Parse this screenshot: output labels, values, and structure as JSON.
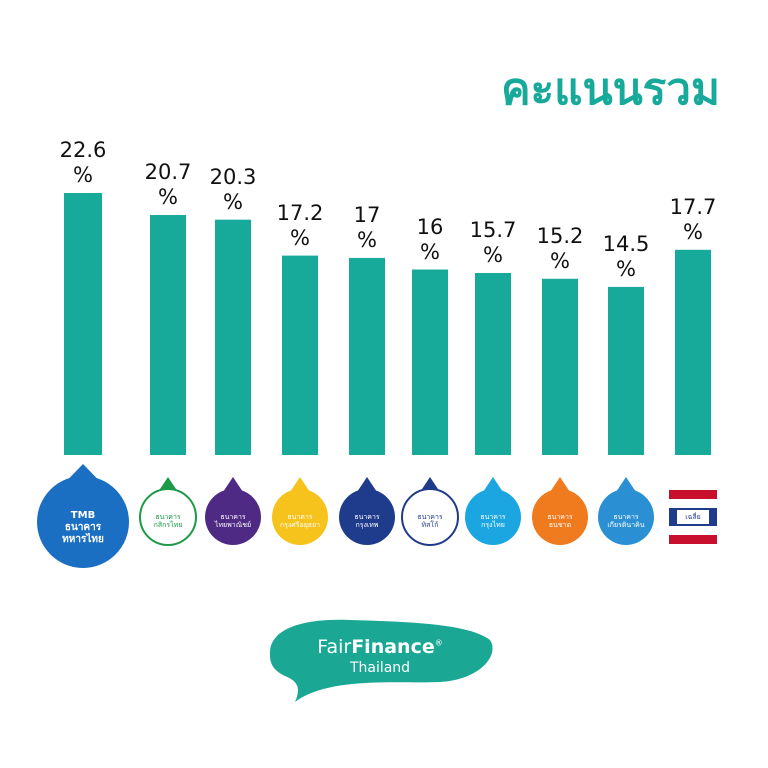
{
  "chart_data": {
    "type": "bar",
    "title": "คะแนนรวม",
    "categories": [
      "TMB ธนาคาร ทหารไทย",
      "ธนาคาร กสิกรไทย",
      "ธนาคาร ไทยพาณิชย์",
      "ธนาคาร กรุงศรีอยุธยา",
      "ธนาคาร กรุงเทพ",
      "ธนาคาร ทิสโก้",
      "ธนาคาร กรุงไทย",
      "ธนาคาร ธนชาต",
      "ธนาคาร เกียรตินาคิน",
      "เฉลี่ย"
    ],
    "values": [
      22.6,
      20.7,
      20.3,
      17.2,
      17,
      16,
      15.7,
      15.2,
      14.5,
      17.7
    ],
    "value_labels": [
      "22.6 %",
      "20.7 %",
      "20.3 %",
      "17.2 %",
      "17 %",
      "16 %",
      "15.7 %",
      "15.2 %",
      "14.5 %",
      "17.7 %"
    ],
    "color": "#17a99a",
    "logo_colors": [
      "#1b6fc2",
      "#ffffff",
      "#4e2a84",
      "#f6c21c",
      "#1f3c8c",
      "#ffffff",
      "#1ba6e1",
      "#f07a1e",
      "#2a8fd3",
      "flag"
    ],
    "logo_text_colors": [
      "#ffffff",
      "#1d9a47",
      "#ffffff",
      "#ffffff",
      "#ffffff",
      "#1f3c8c",
      "#ffffff",
      "#ffffff",
      "#ffffff",
      "#1f3c8c"
    ],
    "footer": {
      "brand_left": "Fair",
      "brand_right": "Finance",
      "mark": "®",
      "subtitle": "Thailand"
    }
  }
}
